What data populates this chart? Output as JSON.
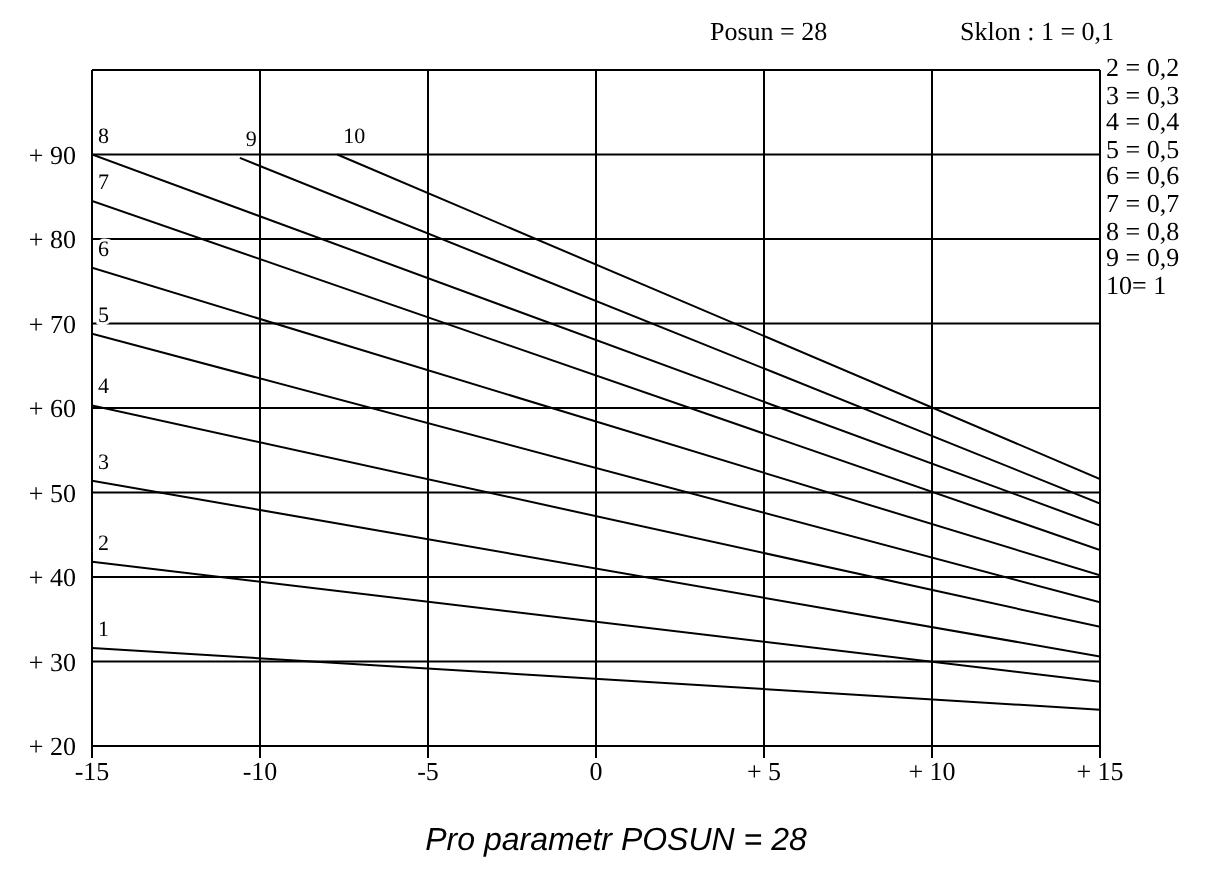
{
  "chart_data": {
    "type": "line",
    "title": "Pro parametr POSUN = 28",
    "annotations": [
      "Posun = 28",
      "Sklon : 1 = 0,1",
      "2 = 0,2",
      "3 = 0,3",
      "4 = 0,4",
      "5 = 0,5",
      "6 = 0,6",
      "7 = 0,7",
      "8 = 0,8",
      "9 = 0,9",
      "10= 1"
    ],
    "series": [
      {
        "name": "1",
        "color": "#000000",
        "x": [
          -15,
          15
        ],
        "values": [
          31.6,
          24.3
        ]
      },
      {
        "name": "2",
        "color": "#000000",
        "x": [
          -15,
          15
        ],
        "values": [
          41.8,
          27.6
        ]
      },
      {
        "name": "3",
        "color": "#000000",
        "x": [
          -15,
          15
        ],
        "values": [
          51.4,
          30.6
        ]
      },
      {
        "name": "4",
        "color": "#000000",
        "x": [
          -15,
          15
        ],
        "values": [
          60.3,
          34.1
        ]
      },
      {
        "name": "5",
        "color": "#000000",
        "x": [
          -15,
          15
        ],
        "values": [
          68.8,
          37
        ]
      },
      {
        "name": "6",
        "color": "#000000",
        "x": [
          -15,
          15
        ],
        "values": [
          76.6,
          40.2
        ]
      },
      {
        "name": "7",
        "color": "#000000",
        "x": [
          -15,
          15
        ],
        "values": [
          84.5,
          43.2
        ]
      },
      {
        "name": "8",
        "color": "#000000",
        "x": [
          -15,
          15
        ],
        "values": [
          90,
          46.1
        ]
      },
      {
        "name": "9",
        "color": "#000000",
        "x": [
          -10.6,
          15
        ],
        "values": [
          89.6,
          48.7
        ]
      },
      {
        "name": "10",
        "color": "#000000",
        "x": [
          -7.7,
          15
        ],
        "values": [
          90,
          51.6
        ]
      }
    ],
    "xlim": [
      -15,
      15
    ],
    "xticks": [
      -15,
      -10,
      -5,
      0,
      {
        "value": 5,
        "label": "+ 5"
      },
      {
        "value": 10,
        "label": "+ 10"
      },
      {
        "value": 15,
        "label": "+ 15"
      }
    ],
    "ylim": [
      20,
      100
    ],
    "yticks": [
      {
        "value": 20,
        "label": "+ 20"
      },
      {
        "value": 30,
        "label": "+ 30"
      },
      {
        "value": 40,
        "label": "+ 40"
      },
      {
        "value": 50,
        "label": "+ 50"
      },
      {
        "value": 60,
        "label": "+ 60"
      },
      {
        "value": 70,
        "label": "+ 70"
      },
      {
        "value": 80,
        "label": "+ 80"
      },
      {
        "value": 90,
        "label": "+ 90"
      },
      {
        "value": 100,
        "label": null
      }
    ],
    "grid": true,
    "marker": "none",
    "line_style": "solid"
  }
}
